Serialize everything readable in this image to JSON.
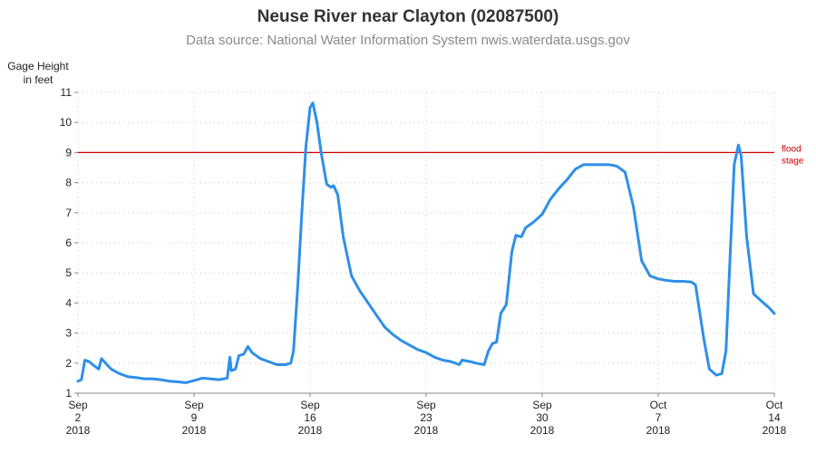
{
  "chart_data": {
    "type": "line",
    "title": "Neuse River near Clayton (02087500)",
    "subtitle": "Data source: National Water Information System nwis.waterdata.usgs.gov",
    "ylabel_lines": [
      "Gage Height",
      "in feet"
    ],
    "ylim": [
      1,
      11
    ],
    "yticks": [
      1,
      2,
      3,
      4,
      5,
      6,
      7,
      8,
      9,
      10,
      11
    ],
    "xlim": [
      "2018-09-02",
      "2018-10-14"
    ],
    "xticks": [
      {
        "date": "2018-09-02",
        "lines": [
          "Sep",
          "2",
          "2018"
        ]
      },
      {
        "date": "2018-09-09",
        "lines": [
          "Sep",
          "9",
          "2018"
        ]
      },
      {
        "date": "2018-09-16",
        "lines": [
          "Sep",
          "16",
          "2018"
        ]
      },
      {
        "date": "2018-09-23",
        "lines": [
          "Sep",
          "23",
          "2018"
        ]
      },
      {
        "date": "2018-09-30",
        "lines": [
          "Sep",
          "30",
          "2018"
        ]
      },
      {
        "date": "2018-10-07",
        "lines": [
          "Oct",
          "7",
          "2018"
        ]
      },
      {
        "date": "2018-10-14",
        "lines": [
          "Oct",
          "14",
          "2018"
        ]
      }
    ],
    "grid": true,
    "reference_line": {
      "y": 9,
      "label_lines": [
        "flood",
        "stage"
      ],
      "color": "#cc0000"
    },
    "series": [
      {
        "color": "#2f8fe8",
        "points": [
          [
            "2018-09-02 00:00",
            1.4
          ],
          [
            "2018-09-02 05:00",
            1.45
          ],
          [
            "2018-09-02 10:00",
            2.1
          ],
          [
            "2018-09-02 16:00",
            2.05
          ],
          [
            "2018-09-03 00:00",
            1.9
          ],
          [
            "2018-09-03 06:00",
            1.8
          ],
          [
            "2018-09-03 10:00",
            2.15
          ],
          [
            "2018-09-03 18:00",
            1.95
          ],
          [
            "2018-09-04 00:00",
            1.8
          ],
          [
            "2018-09-04 12:00",
            1.65
          ],
          [
            "2018-09-05 00:00",
            1.55
          ],
          [
            "2018-09-05 12:00",
            1.52
          ],
          [
            "2018-09-06 00:00",
            1.48
          ],
          [
            "2018-09-06 12:00",
            1.48
          ],
          [
            "2018-09-07 00:00",
            1.45
          ],
          [
            "2018-09-07 12:00",
            1.4
          ],
          [
            "2018-09-08 00:00",
            1.38
          ],
          [
            "2018-09-08 12:00",
            1.35
          ],
          [
            "2018-09-09 00:00",
            1.42
          ],
          [
            "2018-09-09 12:00",
            1.5
          ],
          [
            "2018-09-10 00:00",
            1.48
          ],
          [
            "2018-09-10 12:00",
            1.45
          ],
          [
            "2018-09-11 00:00",
            1.5
          ],
          [
            "2018-09-11 04:00",
            2.2
          ],
          [
            "2018-09-11 06:00",
            1.75
          ],
          [
            "2018-09-11 12:00",
            1.8
          ],
          [
            "2018-09-11 17:00",
            2.25
          ],
          [
            "2018-09-12 00:00",
            2.3
          ],
          [
            "2018-09-12 06:00",
            2.55
          ],
          [
            "2018-09-12 12:00",
            2.35
          ],
          [
            "2018-09-13 00:00",
            2.15
          ],
          [
            "2018-09-13 12:00",
            2.05
          ],
          [
            "2018-09-14 00:00",
            1.95
          ],
          [
            "2018-09-14 12:00",
            1.95
          ],
          [
            "2018-09-14 20:00",
            2.0
          ],
          [
            "2018-09-15 00:00",
            2.4
          ],
          [
            "2018-09-15 06:00",
            4.5
          ],
          [
            "2018-09-15 12:00",
            7.0
          ],
          [
            "2018-09-15 18:00",
            9.2
          ],
          [
            "2018-09-16 00:00",
            10.5
          ],
          [
            "2018-09-16 04:00",
            10.65
          ],
          [
            "2018-09-16 10:00",
            10.0
          ],
          [
            "2018-09-16 16:00",
            9.0
          ],
          [
            "2018-09-17 00:00",
            7.95
          ],
          [
            "2018-09-17 06:00",
            7.85
          ],
          [
            "2018-09-17 10:00",
            7.9
          ],
          [
            "2018-09-17 16:00",
            7.6
          ],
          [
            "2018-09-18 00:00",
            6.2
          ],
          [
            "2018-09-18 12:00",
            4.9
          ],
          [
            "2018-09-19 00:00",
            4.4
          ],
          [
            "2018-09-19 12:00",
            4.0
          ],
          [
            "2018-09-20 00:00",
            3.6
          ],
          [
            "2018-09-20 12:00",
            3.2
          ],
          [
            "2018-09-21 00:00",
            2.95
          ],
          [
            "2018-09-21 12:00",
            2.75
          ],
          [
            "2018-09-22 00:00",
            2.6
          ],
          [
            "2018-09-22 12:00",
            2.45
          ],
          [
            "2018-09-23 00:00",
            2.35
          ],
          [
            "2018-09-23 12:00",
            2.2
          ],
          [
            "2018-09-24 00:00",
            2.1
          ],
          [
            "2018-09-24 12:00",
            2.05
          ],
          [
            "2018-09-25 00:00",
            1.95
          ],
          [
            "2018-09-25 04:00",
            2.1
          ],
          [
            "2018-09-25 16:00",
            2.05
          ],
          [
            "2018-09-26 00:00",
            2.0
          ],
          [
            "2018-09-26 12:00",
            1.95
          ],
          [
            "2018-09-26 18:00",
            2.4
          ],
          [
            "2018-09-27 00:00",
            2.65
          ],
          [
            "2018-09-27 06:00",
            2.7
          ],
          [
            "2018-09-27 12:00",
            3.65
          ],
          [
            "2018-09-27 20:00",
            3.95
          ],
          [
            "2018-09-28 04:00",
            5.7
          ],
          [
            "2018-09-28 10:00",
            6.25
          ],
          [
            "2018-09-28 18:00",
            6.2
          ],
          [
            "2018-09-29 00:00",
            6.5
          ],
          [
            "2018-09-29 12:00",
            6.7
          ],
          [
            "2018-09-30 00:00",
            6.95
          ],
          [
            "2018-09-30 12:00",
            7.45
          ],
          [
            "2018-10-01 00:00",
            7.8
          ],
          [
            "2018-10-01 12:00",
            8.1
          ],
          [
            "2018-10-02 00:00",
            8.45
          ],
          [
            "2018-10-02 12:00",
            8.6
          ],
          [
            "2018-10-03 00:00",
            8.6
          ],
          [
            "2018-10-03 12:00",
            8.6
          ],
          [
            "2018-10-04 00:00",
            8.6
          ],
          [
            "2018-10-04 12:00",
            8.55
          ],
          [
            "2018-10-05 00:00",
            8.35
          ],
          [
            "2018-10-05 12:00",
            7.2
          ],
          [
            "2018-10-06 00:00",
            5.4
          ],
          [
            "2018-10-06 12:00",
            4.9
          ],
          [
            "2018-10-07 00:00",
            4.8
          ],
          [
            "2018-10-07 12:00",
            4.75
          ],
          [
            "2018-10-08 00:00",
            4.72
          ],
          [
            "2018-10-08 12:00",
            4.72
          ],
          [
            "2018-10-09 00:00",
            4.7
          ],
          [
            "2018-10-09 06:00",
            4.6
          ],
          [
            "2018-10-09 18:00",
            2.8
          ],
          [
            "2018-10-10 02:00",
            1.8
          ],
          [
            "2018-10-10 12:00",
            1.6
          ],
          [
            "2018-10-10 20:00",
            1.65
          ],
          [
            "2018-10-11 02:00",
            2.4
          ],
          [
            "2018-10-11 08:00",
            5.5
          ],
          [
            "2018-10-11 14:00",
            8.6
          ],
          [
            "2018-10-11 20:00",
            9.25
          ],
          [
            "2018-10-12 00:00",
            8.9
          ],
          [
            "2018-10-12 08:00",
            6.2
          ],
          [
            "2018-10-12 18:00",
            4.3
          ],
          [
            "2018-10-13 06:00",
            4.05
          ],
          [
            "2018-10-13 16:00",
            3.85
          ],
          [
            "2018-10-14 00:00",
            3.65
          ]
        ]
      }
    ]
  }
}
